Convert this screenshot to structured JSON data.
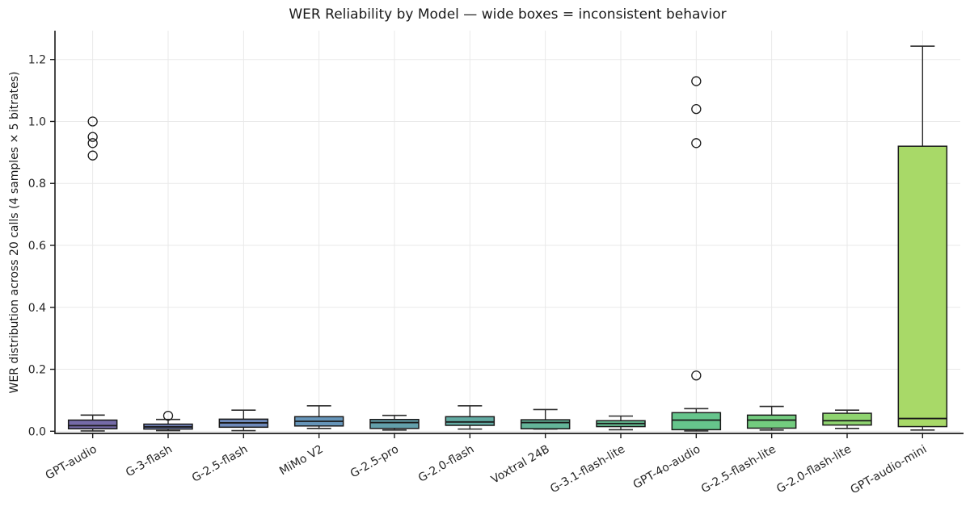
{
  "chart_data": {
    "type": "box",
    "title": "WER Reliability by Model — wide boxes = inconsistent behavior",
    "xlabel": "",
    "ylabel": "WER distribution across 20 calls (4 samples × 5 bitrates)",
    "ylim": [
      -0.007,
      1.293
    ],
    "yticks": [
      0.0,
      0.2,
      0.4,
      0.6,
      0.8,
      1.0,
      1.2
    ],
    "ytick_labels": [
      "0.0",
      "0.2",
      "0.4",
      "0.6",
      "0.8",
      "1.0",
      "1.2"
    ],
    "grid": true,
    "legend": "none",
    "categories": [
      "GPT-audio",
      "G-3-flash",
      "G-2.5-flash",
      "MiMo V2",
      "G-2.5-pro",
      "G-2.0-flash",
      "Voxtral 24B",
      "G-3.1-flash-lite",
      "GPT-4o-audio",
      "G-2.5-flash-lite",
      "G-2.0-flash-lite",
      "GPT-audio-mini"
    ],
    "series": [
      {
        "name": "GPT-audio",
        "whisker_low": 0.001,
        "q1": 0.008,
        "median": 0.018,
        "q3": 0.036,
        "whisker_high": 0.052,
        "outliers": [
          0.89,
          0.93,
          0.95,
          1.0
        ],
        "color": "#756ba8"
      },
      {
        "name": "G-3-flash",
        "whisker_low": 0.002,
        "q1": 0.007,
        "median": 0.014,
        "q3": 0.023,
        "whisker_high": 0.038,
        "outliers": [
          0.05
        ],
        "color": "#6e7eb3"
      },
      {
        "name": "G-2.5-flash",
        "whisker_low": 0.002,
        "q1": 0.013,
        "median": 0.027,
        "q3": 0.039,
        "whisker_high": 0.068,
        "outliers": [],
        "color": "#6e89ba"
      },
      {
        "name": "MiMo V2",
        "whisker_low": 0.009,
        "q1": 0.017,
        "median": 0.032,
        "q3": 0.047,
        "whisker_high": 0.082,
        "outliers": [],
        "color": "#6695b9"
      },
      {
        "name": "G-2.5-pro",
        "whisker_low": 0.004,
        "q1": 0.009,
        "median": 0.028,
        "q3": 0.038,
        "whisker_high": 0.051,
        "outliers": [],
        "color": "#63a0ab"
      },
      {
        "name": "G-2.0-flash",
        "whisker_low": 0.007,
        "q1": 0.019,
        "median": 0.03,
        "q3": 0.047,
        "whisker_high": 0.082,
        "outliers": [],
        "color": "#62aaa2"
      },
      {
        "name": "Voxtral 24B",
        "whisker_low": 0.007,
        "q1": 0.008,
        "median": 0.028,
        "q3": 0.037,
        "whisker_high": 0.07,
        "outliers": [],
        "color": "#63b599"
      },
      {
        "name": "G-3.1-flash-lite",
        "whisker_low": 0.005,
        "q1": 0.015,
        "median": 0.025,
        "q3": 0.034,
        "whisker_high": 0.049,
        "outliers": [],
        "color": "#65bd92"
      },
      {
        "name": "GPT-4o-audio",
        "whisker_low": 0.001,
        "q1": 0.005,
        "median": 0.036,
        "q3": 0.06,
        "whisker_high": 0.073,
        "outliers": [
          0.18,
          0.93,
          1.04,
          1.13
        ],
        "color": "#66c58c"
      },
      {
        "name": "G-2.5-flash-lite",
        "whisker_low": 0.004,
        "q1": 0.01,
        "median": 0.036,
        "q3": 0.052,
        "whisker_high": 0.08,
        "outliers": [],
        "color": "#73cc7f"
      },
      {
        "name": "G-2.0-flash-lite",
        "whisker_low": 0.009,
        "q1": 0.02,
        "median": 0.034,
        "q3": 0.058,
        "whisker_high": 0.068,
        "outliers": [],
        "color": "#8fd470"
      },
      {
        "name": "GPT-audio-mini",
        "whisker_low": 0.004,
        "q1": 0.015,
        "median": 0.041,
        "q3": 0.92,
        "whisker_high": 1.243,
        "outliers": [],
        "color": "#a8d968"
      }
    ],
    "style": {
      "grid_color": "#e9e9e9",
      "box_edge_color": "#1a1a1a",
      "whisker_color": "#2b2b2b",
      "spine_color": "#1a1a1a",
      "tick_label_color": "#262626"
    }
  }
}
